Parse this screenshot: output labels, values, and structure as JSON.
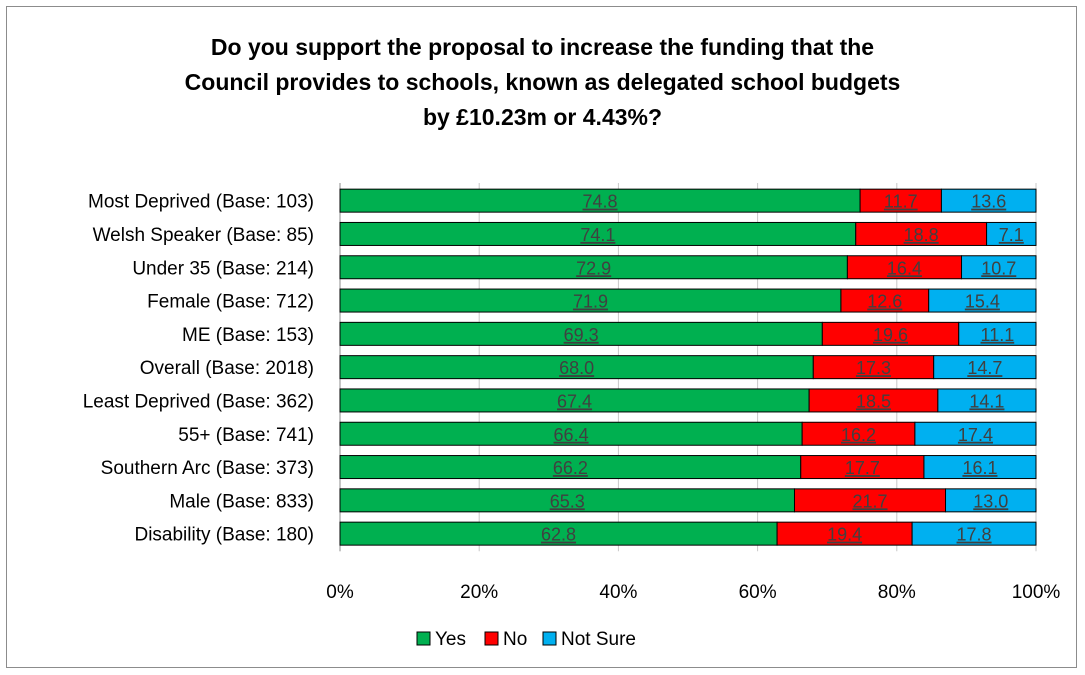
{
  "chart_data": {
    "type": "bar",
    "orientation": "horizontal",
    "stacked": "percent",
    "title_lines": [
      "Do you support the proposal to increase the funding that the",
      "Council provides to schools, known as delegated school budgets",
      "by £10.23m or 4.43%?"
    ],
    "categories": [
      "Most Deprived (Base: 103)",
      "Welsh Speaker (Base: 85)",
      "Under 35 (Base: 214)",
      "Female (Base: 712)",
      "ME (Base: 153)",
      "Overall (Base: 2018)",
      "Least Deprived (Base: 362)",
      "55+ (Base: 741)",
      "Southern Arc (Base: 373)",
      "Male (Base: 833)",
      "Disability (Base: 180)"
    ],
    "series": [
      {
        "name": "Yes",
        "color": "#00b050",
        "values": [
          74.8,
          74.1,
          72.9,
          71.9,
          69.3,
          68.0,
          67.4,
          66.4,
          66.2,
          65.3,
          62.8
        ],
        "labels": [
          "74.8",
          "74.1",
          "72.9",
          "71.9",
          "69.3",
          "68.0",
          "67.4",
          "66.4",
          "66.2",
          "65.3",
          "62.8"
        ]
      },
      {
        "name": "No",
        "color": "#ff0000",
        "values": [
          11.7,
          18.8,
          16.4,
          12.6,
          19.6,
          17.3,
          18.5,
          16.2,
          17.7,
          21.7,
          19.4
        ],
        "labels": [
          "11.7",
          "18.8",
          "16.4",
          "12.6",
          "19.6",
          "17.3",
          "18.5",
          "16.2",
          "17.7",
          "21.7",
          "19.4"
        ]
      },
      {
        "name": "Not Sure",
        "color": "#00b0f0",
        "values": [
          13.6,
          7.1,
          10.7,
          15.4,
          11.1,
          14.7,
          14.1,
          17.4,
          16.1,
          13.0,
          17.8
        ],
        "labels": [
          "13.6",
          "7.1",
          "10.7",
          "15.4",
          "11.1",
          "14.7",
          "14.1",
          "17.4",
          "16.1",
          "13.0",
          "17.8"
        ]
      }
    ],
    "xlim": [
      0,
      100
    ],
    "x_ticks": [
      "0%",
      "20%",
      "40%",
      "60%",
      "80%",
      "100%"
    ],
    "grid": true,
    "legend_position": "bottom"
  }
}
